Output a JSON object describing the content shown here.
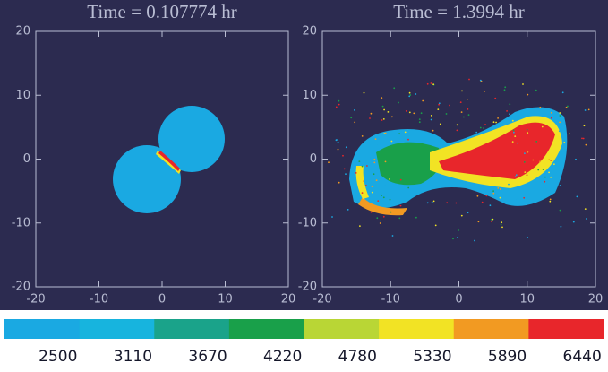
{
  "chart_data": [
    {
      "type": "scatter",
      "title": "Time = 0.107774 hr",
      "xlim": [
        -20,
        20
      ],
      "ylim": [
        -20,
        20
      ],
      "xticks": [
        -20,
        -10,
        0,
        10,
        20
      ],
      "yticks": [
        -20,
        -10,
        0,
        10,
        20
      ]
    },
    {
      "type": "scatter",
      "title": "Time = 1.3994 hr",
      "xlim": [
        -20,
        20
      ],
      "ylim": [
        -20,
        20
      ],
      "xticks": [
        -20,
        -10,
        0,
        10,
        20
      ],
      "yticks": [
        -20,
        -10,
        0,
        10,
        20
      ]
    }
  ],
  "colorbar": {
    "ticks": [
      2500,
      3110,
      3670,
      4220,
      4780,
      5330,
      5890,
      6440
    ],
    "colors": [
      "#1aa9e2",
      "#17b4de",
      "#1aa38a",
      "#19a04a",
      "#b9d635",
      "#f2e324",
      "#f29a22",
      "#e8262b"
    ]
  }
}
